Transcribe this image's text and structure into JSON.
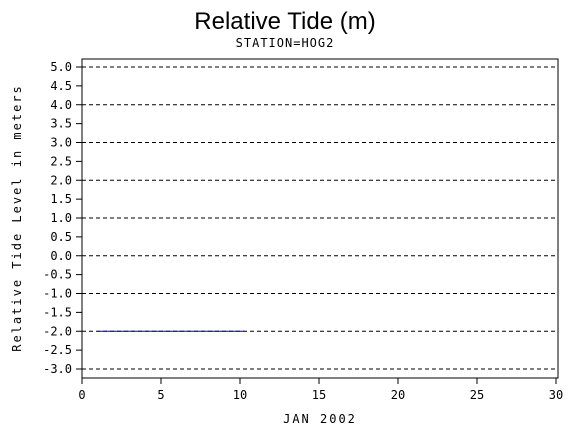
{
  "chart_data": {
    "type": "line",
    "title": "Relative Tide (m)",
    "subtitle": "STATION=HOG2",
    "xlabel": "JAN 2002",
    "ylabel": "Relative Tide Level in meters",
    "xlim": [
      0,
      30
    ],
    "ylim": [
      -3.0,
      5.0
    ],
    "x_ticks": [
      0,
      5,
      10,
      15,
      20,
      25,
      30
    ],
    "y_ticks": [
      5.0,
      4.5,
      4.0,
      3.5,
      3.0,
      2.5,
      2.0,
      1.5,
      1.0,
      0.5,
      0.0,
      -0.5,
      -1.0,
      -1.5,
      -2.0,
      -2.5,
      -3.0
    ],
    "y_tick_labels": [
      "5.0",
      "4.5",
      "4.0",
      "3.5",
      "3.0",
      "2.5",
      "2.0",
      "1.5",
      "1.0",
      "0.5",
      "0.0",
      "-0.5",
      "-1.0",
      "-1.5",
      "-2.0",
      "-2.5",
      "-3.0"
    ],
    "gridlines_y": [
      5.0,
      4.0,
      3.0,
      2.0,
      1.0,
      0.0,
      -1.0,
      -2.0,
      -3.0
    ],
    "grid": "dashed horizontal at whole meters",
    "series": [
      {
        "color": "#0000cc",
        "x": [
          1.0,
          10.3
        ],
        "y": [
          -2.0,
          -2.0
        ]
      }
    ]
  }
}
